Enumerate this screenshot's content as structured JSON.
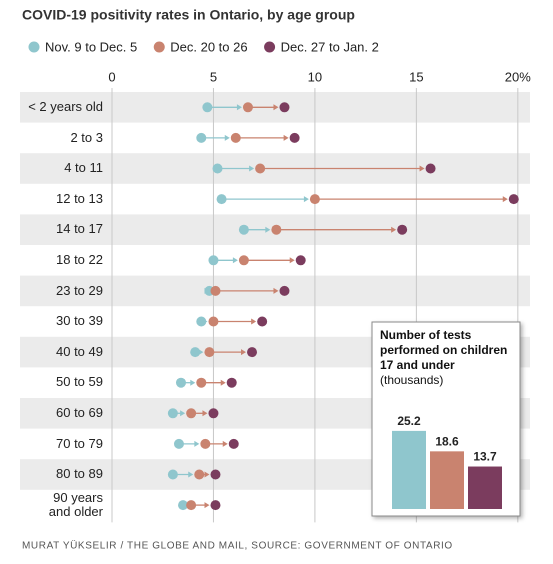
{
  "chart_data": [
    {
      "type": "dot",
      "title": "COVID-19 positivity rates in Ontario, by age group",
      "source": "MURAT YÜKSELIR / THE GLOBE AND MAIL, SOURCE: GOVERNMENT OF ONTARIO",
      "categories": [
        "< 2 years old",
        "2 to 3",
        "4 to 11",
        "12 to 13",
        "14 to 17",
        "18 to 22",
        "23 to 29",
        "30 to 39",
        "40 to 49",
        "50 to 59",
        "60 to 69",
        "70 to 79",
        "80 to 89",
        "90 years and older"
      ],
      "series": [
        {
          "name": "Nov. 9 to Dec. 5",
          "color": "#8fc6cd",
          "values": [
            4.7,
            4.4,
            5.2,
            5.4,
            6.5,
            5.0,
            4.8,
            4.4,
            4.1,
            3.4,
            3.0,
            3.3,
            3.0,
            3.5
          ]
        },
        {
          "name": "Dec. 20 to 26",
          "color": "#c9836f",
          "values": [
            6.7,
            6.1,
            7.3,
            10.0,
            8.1,
            6.5,
            5.1,
            5.0,
            4.8,
            4.4,
            3.9,
            4.6,
            4.3,
            3.9
          ]
        },
        {
          "name": "Dec. 27 to Jan. 2",
          "color": "#7b3c5e",
          "values": [
            8.5,
            9.0,
            15.7,
            19.8,
            14.3,
            9.3,
            8.5,
            7.4,
            6.9,
            5.9,
            5.0,
            6.0,
            5.1,
            5.1
          ]
        }
      ],
      "xlim": [
        0,
        20.6
      ],
      "xticks": [
        0,
        5,
        10,
        15,
        {
          "value": 20,
          "label": "20%"
        }
      ],
      "grid": true
    },
    {
      "type": "bar",
      "title": "Number of tests performed on children 17 and under",
      "subtitle": "(thousands)",
      "values": [
        25.2,
        18.6,
        13.7
      ],
      "colors": [
        "#8fc6cd",
        "#c9836f",
        "#7b3c5e"
      ]
    }
  ]
}
